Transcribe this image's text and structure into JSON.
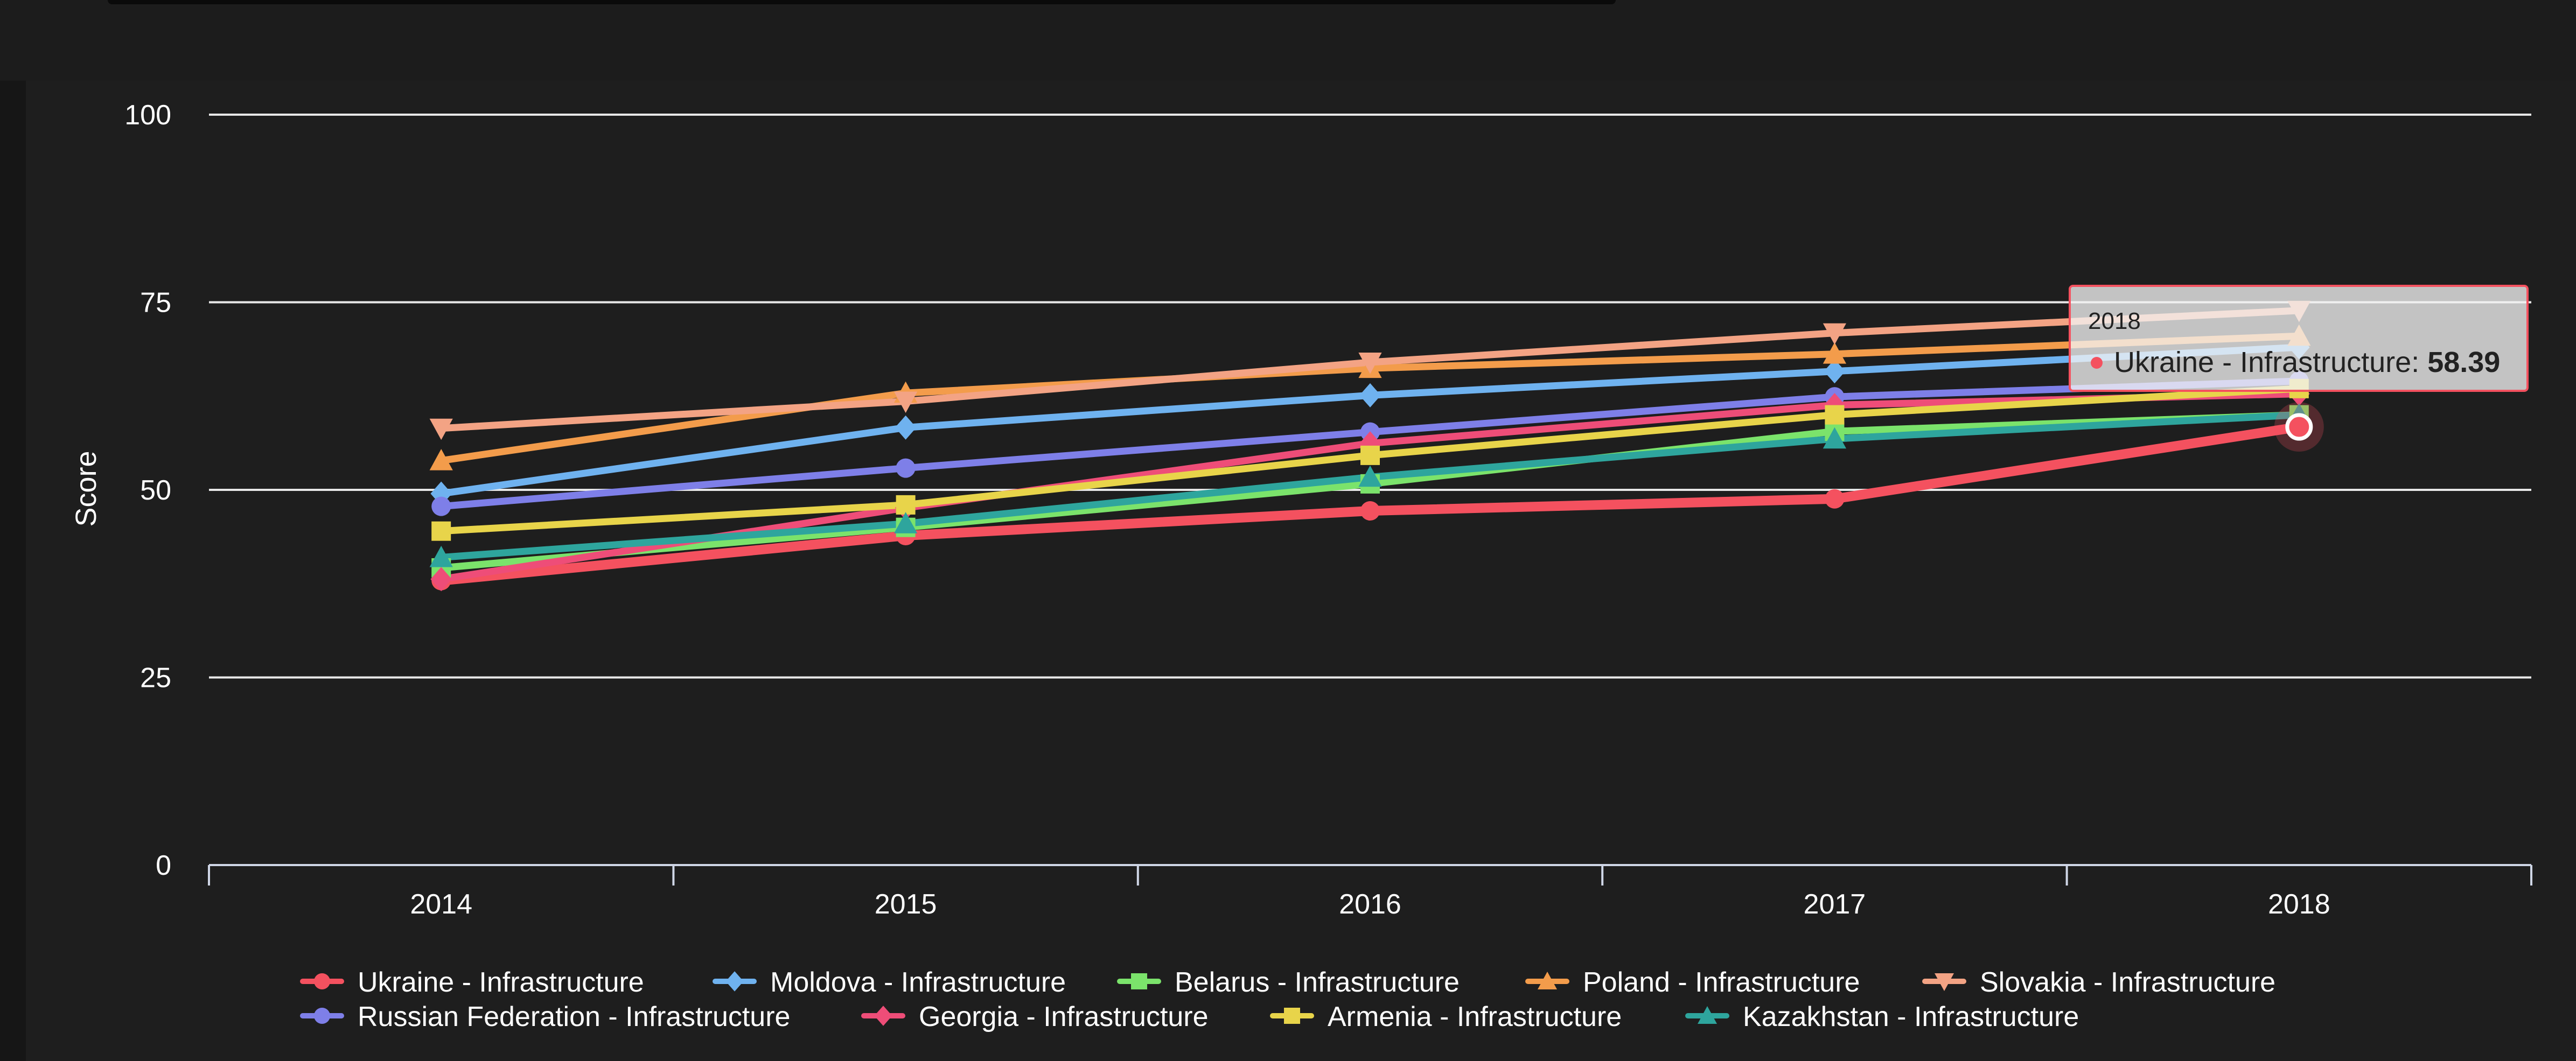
{
  "chart_data": {
    "type": "line",
    "ylabel": "Score",
    "ylim": [
      0,
      100
    ],
    "yticks": [
      "0",
      "25",
      "50",
      "75",
      "100"
    ],
    "categories": [
      "2014",
      "2015",
      "2016",
      "2017",
      "2018"
    ],
    "grid": true,
    "legend_position": "bottom",
    "series": [
      {
        "name": "Ukraine - Infrastructure",
        "color": "#f4515f",
        "marker": "circle",
        "values": [
          37.9,
          43.9,
          47.2,
          48.8,
          58.39
        ]
      },
      {
        "name": "Moldova - Infrastructure",
        "color": "#6fb2ef",
        "marker": "diamond",
        "values": [
          49.5,
          58.3,
          62.6,
          65.8,
          69.0
        ]
      },
      {
        "name": "Belarus - Infrastructure",
        "color": "#7be36b",
        "marker": "square",
        "values": [
          39.6,
          45.0,
          50.8,
          57.8,
          60.0
        ]
      },
      {
        "name": "Poland - Infrastructure",
        "color": "#f39c4b",
        "marker": "triangle",
        "values": [
          53.9,
          62.9,
          66.2,
          68.1,
          70.5
        ]
      },
      {
        "name": "Slovakia - Infrastructure",
        "color": "#f3a384",
        "marker": "triangle-down",
        "values": [
          58.2,
          61.8,
          67.0,
          70.9,
          73.9
        ]
      },
      {
        "name": "Russian Federation - Infrastructure",
        "color": "#7e7fe8",
        "marker": "circle",
        "values": [
          47.8,
          52.9,
          57.7,
          62.4,
          64.5
        ]
      },
      {
        "name": "Georgia - Infrastructure",
        "color": "#ee4d78",
        "marker": "diamond",
        "values": [
          38.1,
          47.6,
          56.2,
          61.3,
          62.8
        ]
      },
      {
        "name": "Armenia - Infrastructure",
        "color": "#e8d44a",
        "marker": "square",
        "values": [
          44.5,
          48.0,
          54.6,
          60.0,
          63.5
        ]
      },
      {
        "name": "Kazakhstan - Infrastructure",
        "color": "#2ea59d",
        "marker": "triangle",
        "values": [
          41.0,
          45.5,
          51.7,
          56.8,
          60.0
        ]
      }
    ],
    "tooltip": {
      "title": "2018",
      "series_index": 0,
      "category_index": 4,
      "label": "Ukraine - Infrastructure: ",
      "value": "58.39"
    }
  },
  "colors": {
    "background": "#1e1e1e",
    "grid": "#e8e8e8",
    "text": "#ffffff",
    "tooltip_border": "#f4515f"
  }
}
